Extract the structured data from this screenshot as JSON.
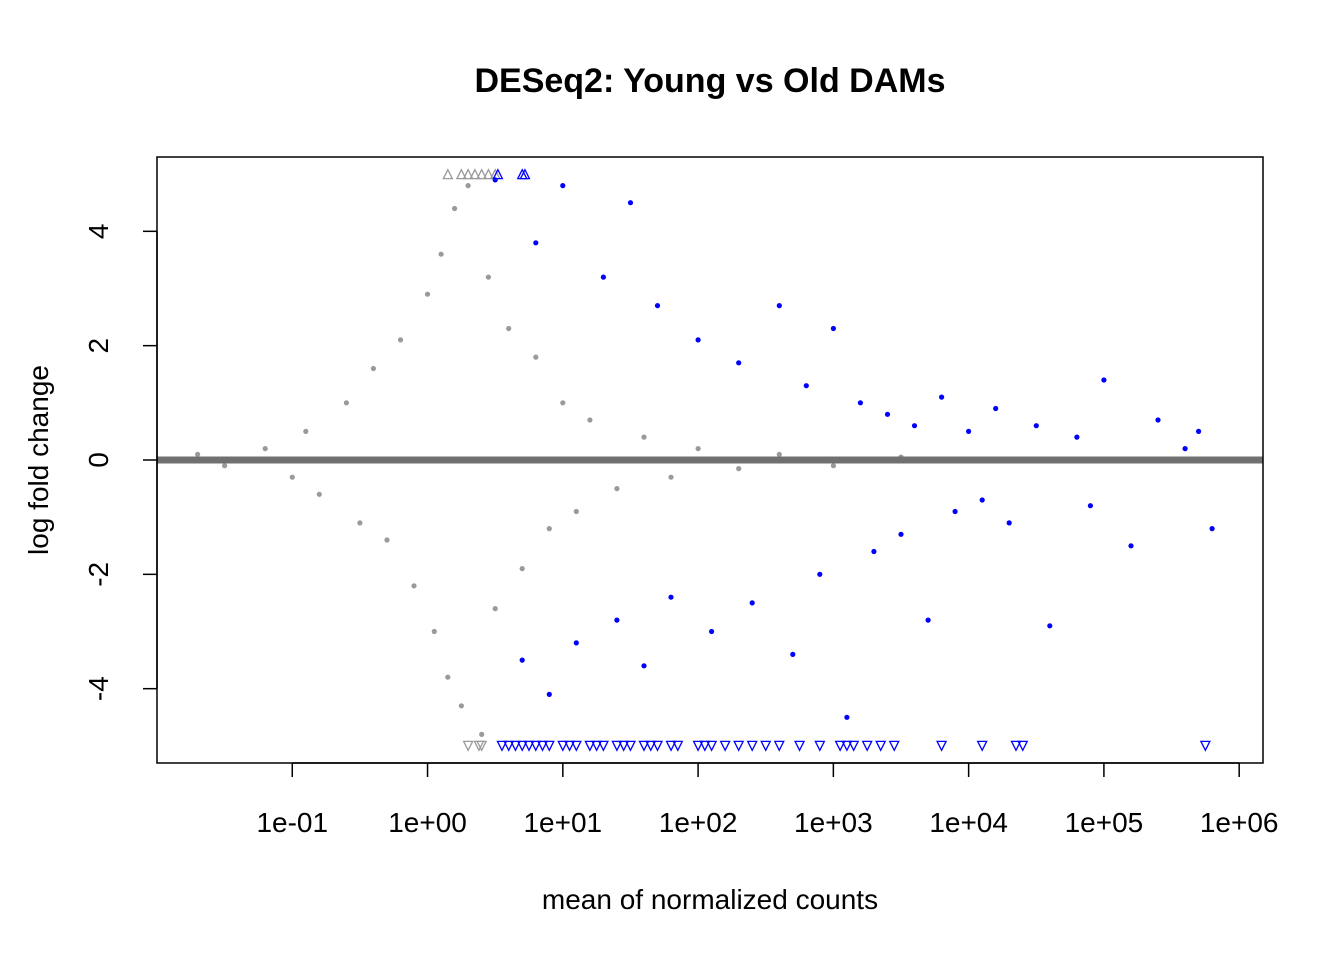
{
  "chart_data": {
    "type": "scatter",
    "plot_kind": "MA plot",
    "title": "DESeq2: Young vs Old DAMs",
    "xlabel": "mean of normalized counts",
    "ylabel": "log fold change",
    "x_scale": "log10",
    "xlim": [
      0.01,
      1500000
    ],
    "ylim": [
      -5.3,
      5.3
    ],
    "x_ticks": [
      0.1,
      1,
      10,
      100,
      1000,
      10000,
      100000,
      1000000
    ],
    "x_tick_labels": [
      "1e-01",
      "1e+00",
      "1e+01",
      "1e+02",
      "1e+03",
      "1e+04",
      "1e+05",
      "1e+06"
    ],
    "y_ticks": [
      -4,
      -2,
      0,
      2,
      4
    ],
    "y_tick_labels": [
      "-4",
      "-2",
      "0",
      "2",
      "4"
    ],
    "grid": false,
    "reference_line": {
      "y": 0,
      "color": "#707070"
    },
    "series": [
      {
        "color": "#9a9a9a",
        "points_log10x_y": [
          [
            -1.9,
            0.0
          ],
          [
            -1.7,
            0.1
          ],
          [
            -1.5,
            -0.1
          ],
          [
            -1.2,
            0.2
          ],
          [
            -1.0,
            -0.3
          ],
          [
            -0.9,
            0.5
          ],
          [
            -0.8,
            -0.6
          ],
          [
            -0.6,
            1.0
          ],
          [
            -0.5,
            -1.1
          ],
          [
            -0.4,
            1.6
          ],
          [
            -0.3,
            -1.4
          ],
          [
            -0.2,
            2.1
          ],
          [
            -0.1,
            -2.2
          ],
          [
            0.0,
            2.9
          ],
          [
            0.05,
            -3.0
          ],
          [
            0.1,
            3.6
          ],
          [
            0.15,
            -3.8
          ],
          [
            0.2,
            4.4
          ],
          [
            0.25,
            -4.3
          ],
          [
            0.3,
            4.8
          ],
          [
            0.4,
            -4.8
          ],
          [
            0.45,
            3.2
          ],
          [
            0.5,
            -2.6
          ],
          [
            0.6,
            2.3
          ],
          [
            0.7,
            -1.9
          ],
          [
            0.8,
            1.8
          ],
          [
            0.9,
            -1.2
          ],
          [
            1.0,
            1.0
          ],
          [
            1.1,
            -0.9
          ],
          [
            1.2,
            0.7
          ],
          [
            1.4,
            -0.5
          ],
          [
            1.6,
            0.4
          ],
          [
            1.8,
            -0.3
          ],
          [
            2.0,
            0.2
          ],
          [
            2.3,
            -0.15
          ],
          [
            2.6,
            0.1
          ],
          [
            3.0,
            -0.1
          ],
          [
            3.5,
            0.05
          ]
        ]
      },
      {
        "color": "#0000ff",
        "points_log10x_y": [
          [
            0.5,
            4.9
          ],
          [
            0.7,
            -3.5
          ],
          [
            0.8,
            3.8
          ],
          [
            0.9,
            -4.1
          ],
          [
            1.0,
            4.8
          ],
          [
            1.1,
            -3.2
          ],
          [
            1.3,
            3.2
          ],
          [
            1.4,
            -2.8
          ],
          [
            1.5,
            4.5
          ],
          [
            1.6,
            -3.6
          ],
          [
            1.7,
            2.7
          ],
          [
            1.8,
            -2.4
          ],
          [
            2.0,
            2.1
          ],
          [
            2.1,
            -3.0
          ],
          [
            2.3,
            1.7
          ],
          [
            2.4,
            -2.5
          ],
          [
            2.6,
            2.7
          ],
          [
            2.7,
            -3.4
          ],
          [
            2.8,
            1.3
          ],
          [
            2.9,
            -2.0
          ],
          [
            3.0,
            2.3
          ],
          [
            3.1,
            -4.5
          ],
          [
            3.2,
            1.0
          ],
          [
            3.3,
            -1.6
          ],
          [
            3.4,
            0.8
          ],
          [
            3.5,
            -1.3
          ],
          [
            3.6,
            0.6
          ],
          [
            3.7,
            -2.8
          ],
          [
            3.8,
            1.1
          ],
          [
            3.9,
            -0.9
          ],
          [
            4.0,
            0.5
          ],
          [
            4.1,
            -0.7
          ],
          [
            4.2,
            0.9
          ],
          [
            4.3,
            -1.1
          ],
          [
            4.5,
            0.6
          ],
          [
            4.6,
            -2.9
          ],
          [
            4.8,
            0.4
          ],
          [
            4.9,
            -0.8
          ],
          [
            5.0,
            1.4
          ],
          [
            5.2,
            -1.5
          ],
          [
            5.4,
            0.7
          ],
          [
            5.6,
            0.2
          ],
          [
            5.7,
            0.5
          ],
          [
            5.8,
            -1.2
          ]
        ]
      }
    ],
    "clipped_markers": {
      "top_value": 5,
      "bottom_value": -5,
      "gray_top_log10x": [
        0.15,
        0.25,
        0.3,
        0.35,
        0.4,
        0.45,
        0.5
      ],
      "blue_top_log10x": [
        0.52,
        0.7,
        0.72
      ],
      "gray_bottom_log10x": [
        0.3,
        0.38,
        0.4
      ],
      "blue_bottom_log10x": [
        0.55,
        0.6,
        0.65,
        0.7,
        0.75,
        0.8,
        0.85,
        0.9,
        1.0,
        1.05,
        1.1,
        1.2,
        1.25,
        1.3,
        1.4,
        1.45,
        1.5,
        1.6,
        1.65,
        1.7,
        1.8,
        1.85,
        2.0,
        2.05,
        2.1,
        2.2,
        2.3,
        2.4,
        2.5,
        2.6,
        2.75,
        2.9,
        3.05,
        3.1,
        3.15,
        3.25,
        3.35,
        3.45,
        3.8,
        4.1,
        4.35,
        4.4,
        5.75
      ]
    }
  }
}
